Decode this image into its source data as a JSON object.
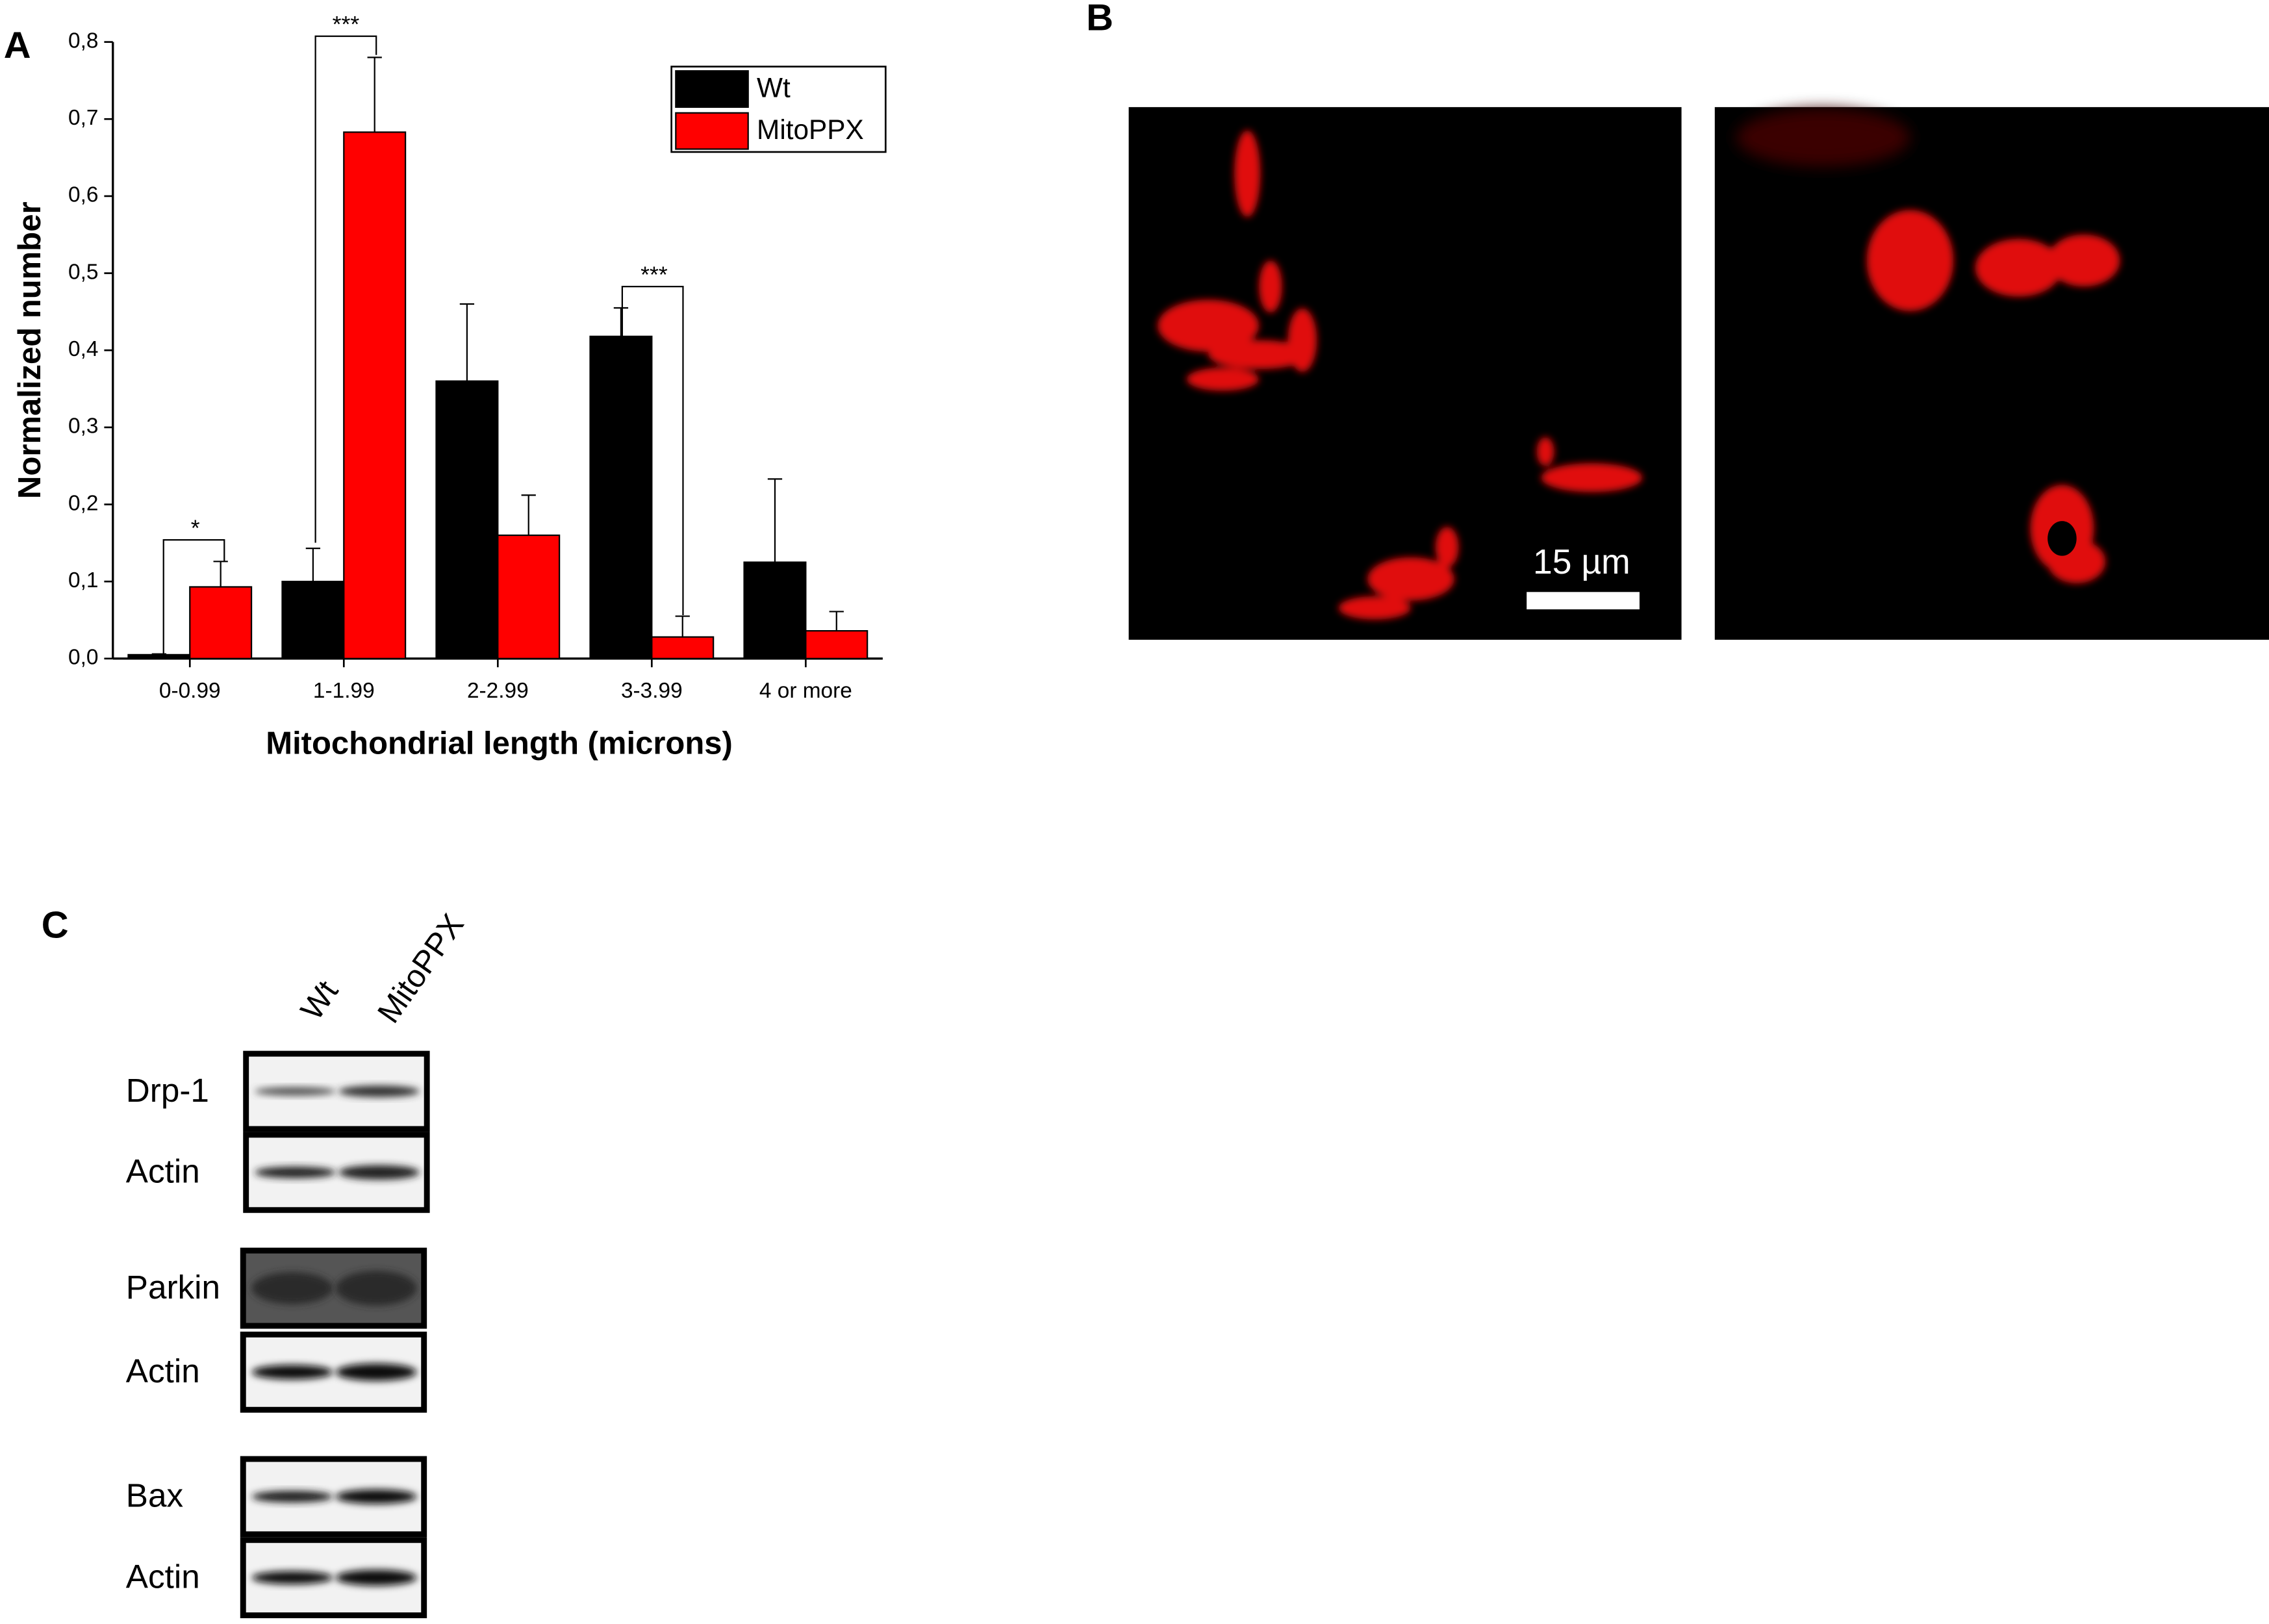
{
  "chart_data": {
    "type": "bar",
    "y_label": "Normalized number",
    "x_label": "Mitochondrial length (microns)",
    "categories": [
      "0-0.99",
      "1-1.99",
      "2-2.99",
      "3-3.99",
      "4 or more"
    ],
    "series": [
      {
        "name": "Wt",
        "color": "#000000",
        "values": [
          0.005,
          0.1,
          0.36,
          0.418,
          0.125
        ],
        "errors": [
          0.001,
          0.043,
          0.1,
          0.037,
          0.108
        ]
      },
      {
        "name": "MitoPPX",
        "color": "#ff0000",
        "values": [
          0.093,
          0.683,
          0.16,
          0.028,
          0.036
        ],
        "errors": [
          0.033,
          0.097,
          0.052,
          0.027,
          0.025
        ]
      }
    ],
    "ylim": [
      0,
      0.8
    ],
    "yticks": [
      {
        "value": 0,
        "label": "0,0"
      },
      {
        "value": 0.1,
        "label": "0,1"
      },
      {
        "value": 0.2,
        "label": "0,2"
      },
      {
        "value": 0.3,
        "label": "0,3"
      },
      {
        "value": 0.4,
        "label": "0,4"
      },
      {
        "value": 0.5,
        "label": "0,5"
      },
      {
        "value": 0.6,
        "label": "0,6"
      },
      {
        "value": 0.7,
        "label": "0,7"
      },
      {
        "value": 0.8,
        "label": "0,8"
      }
    ],
    "annotations": [
      "*",
      "***",
      "***"
    ]
  },
  "panel_labels": [
    "A",
    "B",
    "C"
  ],
  "microscopy": {
    "scale_bar": "15 µm"
  },
  "blot": {
    "lanes": [
      "Wt",
      "MitoPPX"
    ],
    "rows": [
      "Drp-1",
      "Actin",
      "Parkin",
      "Actin",
      "Bax",
      "Actin"
    ]
  }
}
